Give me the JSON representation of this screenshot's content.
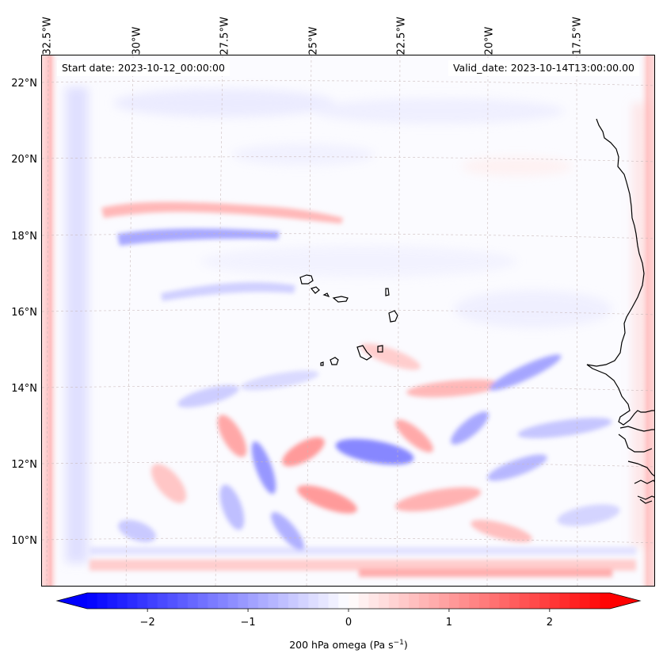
{
  "header": {
    "start_date": "Start date: 2023-10-12_00:00:00",
    "valid_date": "Valid_date: 2023-10-14T13:00:00.00"
  },
  "longitude_labels": [
    "32.5°W",
    "30°W",
    "27.5°W",
    "25°W",
    "22.5°W",
    "20°W",
    "17.5°W"
  ],
  "latitude_labels": [
    "22°N",
    "20°N",
    "18°N",
    "16°N",
    "14°N",
    "12°N",
    "10°N"
  ],
  "colorbar": {
    "label_main": "200 hPa omega (Pa s",
    "label_exp": "−1",
    "label_close": ")",
    "ticks": [
      "−2",
      "−1",
      "0",
      "1",
      "2"
    ],
    "tick_values": [
      -2,
      -1,
      0,
      1,
      2
    ],
    "range": [
      -2.6,
      2.6
    ],
    "colormap": "bwr",
    "low_color": "#0000ff",
    "mid_color": "#ffffff",
    "high_color": "#ff0000"
  },
  "map": {
    "field": "200 hPa omega",
    "coastline_color": "#000000",
    "gridline_color": "#c8b8b8"
  }
}
